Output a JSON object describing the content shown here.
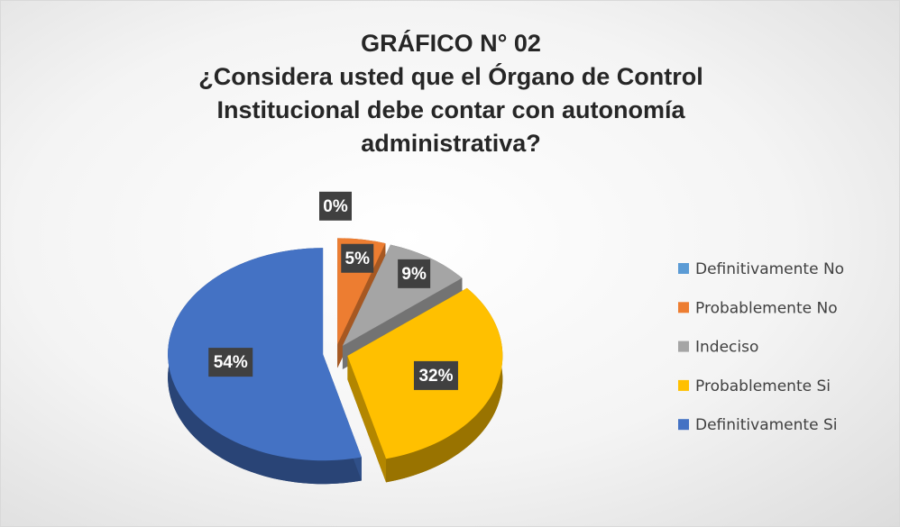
{
  "chart_data": {
    "type": "pie",
    "title": "GRÁFICO N° 02",
    "subtitle": "¿Considera usted que el Órgano de Control Institucional debe contar con autonomía administrativa?",
    "categories": [
      "Definitivamente No",
      "Probablemente No",
      "Indeciso",
      "Probablemente Si",
      "Definitivamente Si"
    ],
    "values": [
      0,
      5,
      9,
      32,
      54
    ],
    "value_labels": [
      "0%",
      "5%",
      "9%",
      "32%",
      "54%"
    ],
    "colors": [
      "#5B9BD5",
      "#ED7D31",
      "#A5A5A5",
      "#FFC000",
      "#4472C4"
    ],
    "legend": "right"
  }
}
